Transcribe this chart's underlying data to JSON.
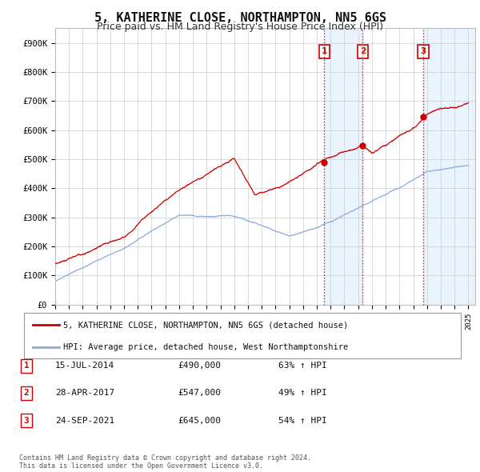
{
  "title": "5, KATHERINE CLOSE, NORTHAMPTON, NN5 6GS",
  "subtitle": "Price paid vs. HM Land Registry's House Price Index (HPI)",
  "title_fontsize": 11,
  "subtitle_fontsize": 9,
  "ylabel_ticks": [
    "£0",
    "£100K",
    "£200K",
    "£300K",
    "£400K",
    "£500K",
    "£600K",
    "£700K",
    "£800K",
    "£900K"
  ],
  "ytick_vals": [
    0,
    100000,
    200000,
    300000,
    400000,
    500000,
    600000,
    700000,
    800000,
    900000
  ],
  "ylim": [
    0,
    950000
  ],
  "xlim_start": 1995.0,
  "xlim_end": 2025.5,
  "background_color": "#ffffff",
  "plot_bg_color": "#ffffff",
  "grid_color": "#cccccc",
  "sale_color": "#cc0000",
  "hpi_color": "#88aadd",
  "vline_color_red": "#cc0000",
  "vline_color_gray": "#aaaaaa",
  "shade_color": "#ddeeff",
  "transactions": [
    {
      "date_num": 2014.54,
      "price": 490000,
      "label": "1"
    },
    {
      "date_num": 2017.33,
      "price": 547000,
      "label": "2"
    },
    {
      "date_num": 2021.73,
      "price": 645000,
      "label": "3"
    }
  ],
  "legend_sale_label": "5, KATHERINE CLOSE, NORTHAMPTON, NN5 6GS (detached house)",
  "legend_hpi_label": "HPI: Average price, detached house, West Northamptonshire",
  "table_rows": [
    {
      "num": "1",
      "date": "15-JUL-2014",
      "price": "£490,000",
      "hpi": "63% ↑ HPI"
    },
    {
      "num": "2",
      "date": "28-APR-2017",
      "price": "£547,000",
      "hpi": "49% ↑ HPI"
    },
    {
      "num": "3",
      "date": "24-SEP-2021",
      "price": "£645,000",
      "hpi": "54% ↑ HPI"
    }
  ],
  "footnote": "Contains HM Land Registry data © Crown copyright and database right 2024.\nThis data is licensed under the Open Government Licence v3.0.",
  "xtick_years": [
    1995,
    1996,
    1997,
    1998,
    1999,
    2000,
    2001,
    2002,
    2003,
    2004,
    2005,
    2006,
    2007,
    2008,
    2009,
    2010,
    2011,
    2012,
    2013,
    2014,
    2015,
    2016,
    2017,
    2018,
    2019,
    2020,
    2021,
    2022,
    2023,
    2024,
    2025
  ]
}
